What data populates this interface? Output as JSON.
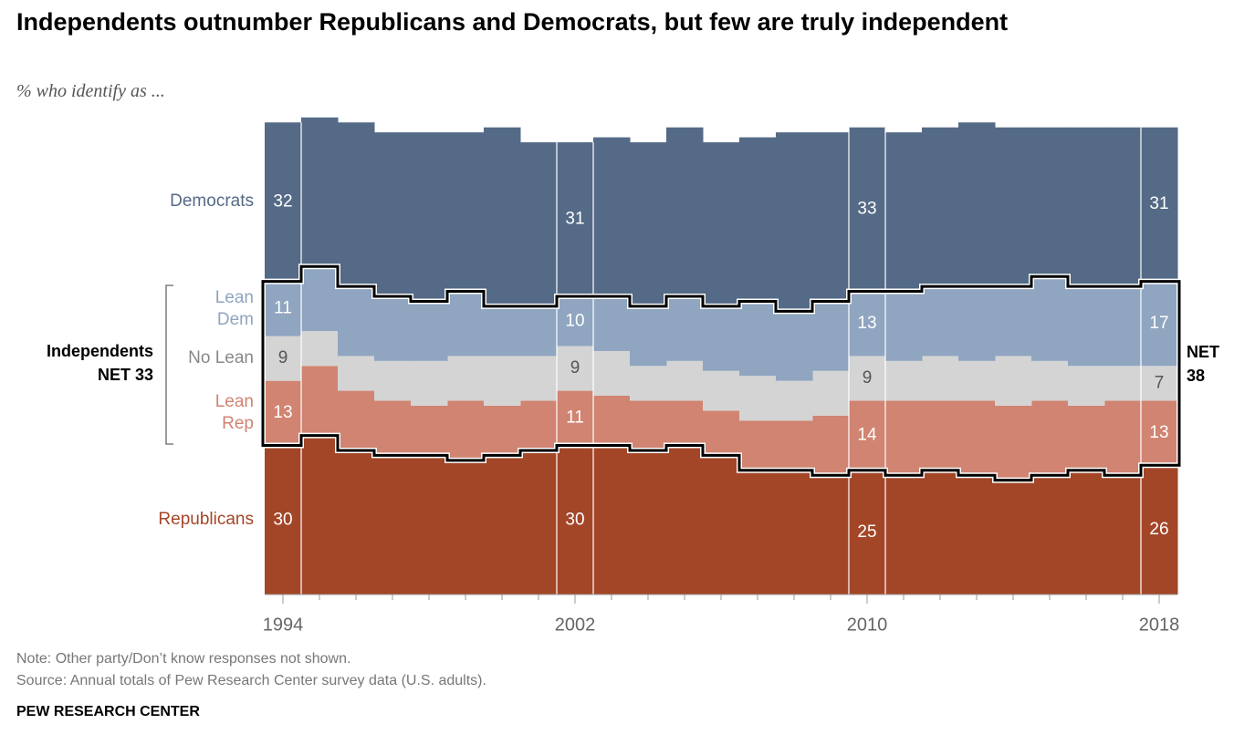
{
  "chart_data": {
    "type": "stacked-step-area",
    "title": "Independents outnumber Republicans and Democrats, but few are truly independent",
    "subtitle": "% who identify as ...",
    "x": [
      1994,
      1995,
      1996,
      1997,
      1998,
      1999,
      2000,
      2001,
      2002,
      2003,
      2004,
      2005,
      2006,
      2007,
      2008,
      2009,
      2010,
      2011,
      2012,
      2013,
      2014,
      2015,
      2016,
      2017,
      2018
    ],
    "xlim": [
      1993.5,
      2018.5
    ],
    "xticks": [
      1994,
      2002,
      2010,
      2018
    ],
    "ylim": [
      0,
      100
    ],
    "series": [
      {
        "name": "Democrats",
        "color": "#546a86",
        "values": [
          32,
          30,
          33,
          33,
          34,
          32,
          36,
          33,
          31,
          32,
          33,
          34,
          33,
          33,
          36,
          34,
          33,
          32,
          32,
          33,
          32,
          30,
          32,
          32,
          31
        ]
      },
      {
        "name": "Lean Dem",
        "color": "#8fa5c0",
        "values": [
          11,
          13,
          14,
          13,
          12,
          13,
          10,
          10,
          10,
          11,
          12,
          13,
          13,
          15,
          14,
          14,
          13,
          14,
          14,
          15,
          14,
          17,
          16,
          16,
          17
        ]
      },
      {
        "name": "No Lean",
        "color": "#d4d4d4",
        "values": [
          9,
          7,
          7,
          8,
          9,
          9,
          10,
          9,
          9,
          9,
          7,
          8,
          8,
          9,
          8,
          9,
          9,
          8,
          9,
          8,
          10,
          8,
          8,
          7,
          7
        ]
      },
      {
        "name": "Lean Rep",
        "color": "#d08471",
        "values": [
          13,
          14,
          12,
          11,
          10,
          12,
          10,
          10,
          11,
          10,
          10,
          9,
          9,
          10,
          10,
          12,
          14,
          15,
          14,
          15,
          15,
          15,
          13,
          15,
          13
        ]
      },
      {
        "name": "Republicans",
        "color": "#a34627",
        "values": [
          30,
          32,
          29,
          28,
          28,
          27,
          28,
          29,
          30,
          30,
          29,
          30,
          28,
          25,
          25,
          24,
          25,
          24,
          25,
          24,
          23,
          24,
          25,
          24,
          26
        ]
      }
    ],
    "annotations": {
      "left_group": "Independents",
      "left_net": "NET 33",
      "right_net": "NET 38"
    },
    "note": "Note: Other party/Don’t know responses not shown.",
    "source": "Source: Annual totals of Pew Research Center survey data (U.S. adults).",
    "footer": "PEW RESEARCH CENTER"
  }
}
